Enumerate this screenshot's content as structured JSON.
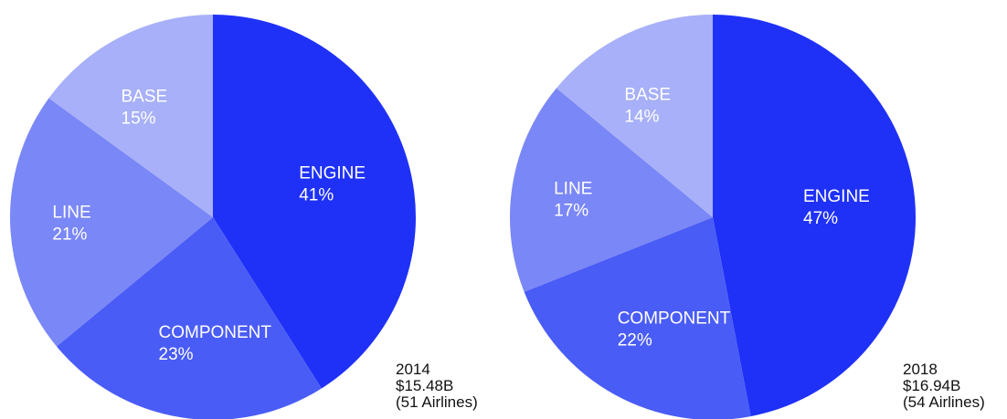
{
  "colors": {
    "ENGINE": "#1f31f7",
    "COMPONENT": "#4a5cf6",
    "LINE": "#7a87f6",
    "BASE": "#a7b0f8",
    "label_text": "#ffffff",
    "caption_text": "#111111"
  },
  "chart_data": [
    {
      "type": "pie",
      "year": "2014",
      "total": "$15.48B",
      "airlines": "(51 Airlines)",
      "slices": [
        {
          "label": "ENGINE",
          "value": 41,
          "display": "41%"
        },
        {
          "label": "COMPONENT",
          "value": 23,
          "display": "23%"
        },
        {
          "label": "LINE",
          "value": 21,
          "display": "21%"
        },
        {
          "label": "BASE",
          "value": 15,
          "display": "15%"
        }
      ]
    },
    {
      "type": "pie",
      "year": "2018",
      "total": "$16.94B",
      "airlines": "(54 Airlines)",
      "slices": [
        {
          "label": "ENGINE",
          "value": 47,
          "display": "47%"
        },
        {
          "label": "COMPONENT",
          "value": 22,
          "display": "22%"
        },
        {
          "label": "LINE",
          "value": 17,
          "display": "17%"
        },
        {
          "label": "BASE",
          "value": 14,
          "display": "14%"
        }
      ]
    }
  ]
}
